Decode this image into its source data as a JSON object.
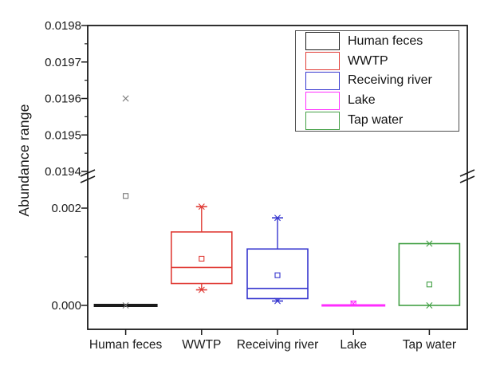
{
  "chart_data": {
    "type": "box",
    "title": "",
    "xlabel": "",
    "ylabel": "Abundance range",
    "axis_break": true,
    "y_axis": {
      "label": "Abundance range",
      "upper_segment": {
        "range": [
          0.0194,
          0.0198
        ],
        "major_ticks": [
          {
            "label": "0.0198",
            "value": 0.0198
          },
          {
            "label": "0.0197",
            "value": 0.0197
          },
          {
            "label": "0.0196",
            "value": 0.0196
          },
          {
            "label": "0.0195",
            "value": 0.0195
          },
          {
            "label": "0.0194",
            "value": 0.0194
          }
        ],
        "minor_ticks": [
          0.01975,
          0.01965,
          0.01955,
          0.01945
        ]
      },
      "lower_segment": {
        "range": [
          -0.0005,
          0.0025
        ],
        "major_ticks": [
          {
            "label": "0.002",
            "value": 0.002
          },
          {
            "label": "0.000",
            "value": 0.0
          }
        ],
        "minor_ticks": [
          0.001
        ]
      }
    },
    "categories": [
      "Human feces",
      "WWTP",
      "Receiving river",
      "Lake",
      "Tap water"
    ],
    "series": [
      {
        "name": "Human feces",
        "color": "#1a1a1a",
        "marker_color": "#777777",
        "q1": 0.0,
        "median": 0.0,
        "q3": 0.0,
        "whisker_low": 0.0,
        "whisker_high": 0.0,
        "mean": 0.00225,
        "cross_markers": [
          0.0196,
          0.0
        ]
      },
      {
        "name": "WWTP",
        "color": "#e03c36",
        "marker_color": "#e03c36",
        "q1": 0.00045,
        "median": 0.00078,
        "q3": 0.00151,
        "whisker_low": 0.00032,
        "whisker_high": 0.00203,
        "mean": 0.00096,
        "cross_markers": [
          0.00203,
          0.00032
        ]
      },
      {
        "name": "Receiving river",
        "color": "#3636cf",
        "marker_color": "#3636cf",
        "q1": 0.00014,
        "median": 0.00035,
        "q3": 0.00116,
        "whisker_low": 9e-05,
        "whisker_high": 0.0018,
        "mean": 0.00062,
        "cross_markers": [
          0.0018,
          9e-05
        ]
      },
      {
        "name": "Lake",
        "color": "#ff2dff",
        "marker_color": "#ff2dff",
        "q1": 0.0,
        "median": 0.0,
        "q3": 0.0,
        "whisker_low": 0.0,
        "whisker_high": 0.0,
        "mean": 4e-05,
        "cross_markers": [
          4e-05
        ]
      },
      {
        "name": "Tap water",
        "color": "#43a045",
        "marker_color": "#43a045",
        "q1": 0.0,
        "median": null,
        "q3": 0.00127,
        "whisker_low": 0.0,
        "whisker_high": 0.00127,
        "mean": 0.00043,
        "cross_markers": [
          0.00127,
          0.0
        ]
      }
    ],
    "legend": {
      "position": "top-right",
      "entries": [
        {
          "label": "Human feces",
          "color": "#1a1a1a"
        },
        {
          "label": "WWTP",
          "color": "#e03c36"
        },
        {
          "label": "Receiving river",
          "color": "#3636cf"
        },
        {
          "label": "Lake",
          "color": "#ff2dff"
        },
        {
          "label": "Tap water",
          "color": "#43a045"
        }
      ]
    }
  }
}
